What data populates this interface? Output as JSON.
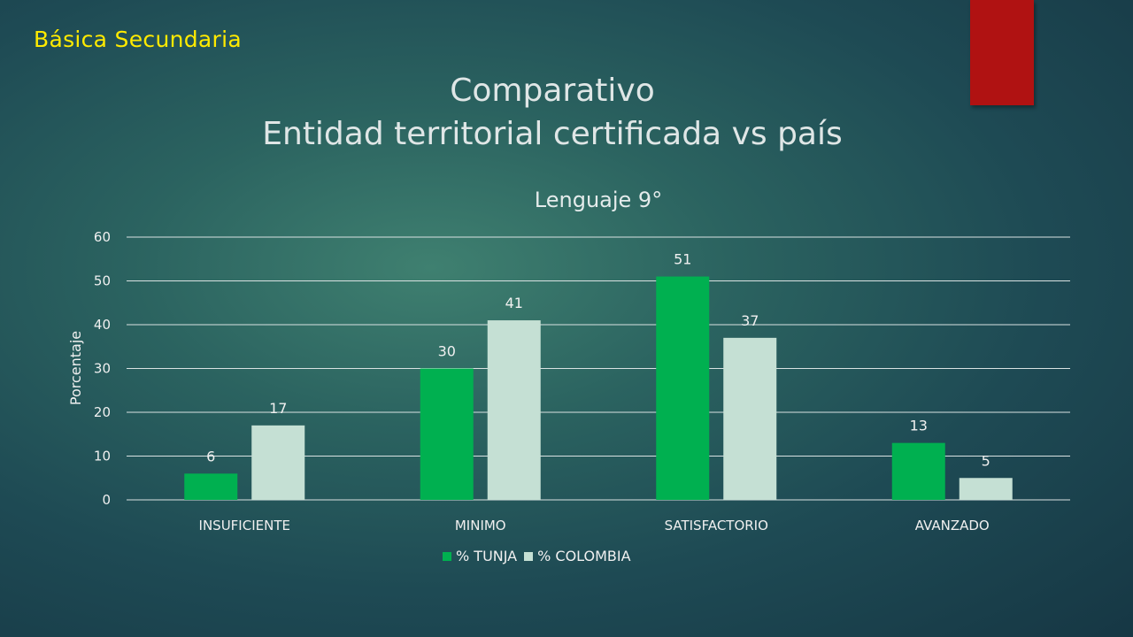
{
  "header": {
    "section_label": "Básica Secundaria",
    "title_line1": "Comparativo",
    "title_line2": "Entidad territorial certificada vs país"
  },
  "colors": {
    "section_label": "#ffea00",
    "corner_tab": "#b01212",
    "series_tunja": "#00b050",
    "series_colombia": "#c5e0d4"
  },
  "chart_data": {
    "type": "bar",
    "title": "Lenguaje 9°",
    "ylabel": "Porcentaje",
    "xlabel": "",
    "ylim": [
      0,
      60
    ],
    "yticks": [
      0,
      10,
      20,
      30,
      40,
      50,
      60
    ],
    "grid": true,
    "legend_position": "bottom",
    "categories": [
      "INSUFICIENTE",
      "MINIMO",
      "SATISFACTORIO",
      "AVANZADO"
    ],
    "series": [
      {
        "name": "% TUNJA",
        "values": [
          6,
          30,
          51,
          13
        ],
        "color": "#00b050"
      },
      {
        "name": "% COLOMBIA",
        "values": [
          17,
          41,
          37,
          5
        ],
        "color": "#c5e0d4"
      }
    ]
  }
}
